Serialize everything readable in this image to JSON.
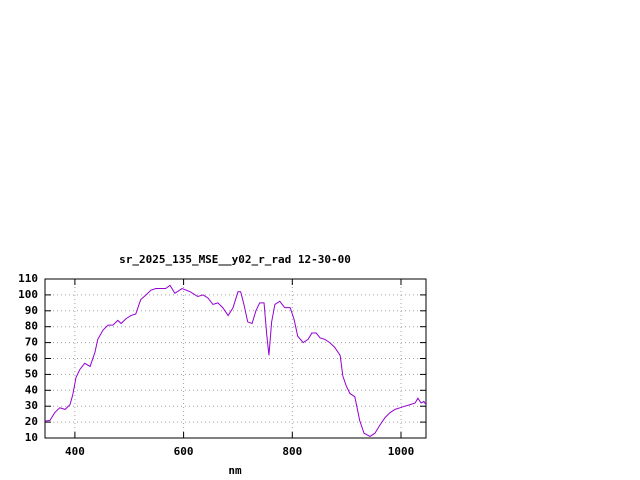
{
  "chart_data": {
    "type": "line",
    "title": "sr_2025_135_MSE__y02_r_rad 12-30-00",
    "x_label": "nm",
    "x": [
      345,
      354,
      363,
      372,
      382,
      391,
      396,
      402,
      409,
      418,
      428,
      437,
      442,
      452,
      461,
      470,
      479,
      485,
      494,
      503,
      512,
      521,
      531,
      540,
      549,
      567,
      575,
      584,
      597,
      612,
      626,
      636,
      645,
      654,
      663,
      672,
      682,
      691,
      700,
      705,
      711,
      718,
      726,
      733,
      740,
      748,
      753,
      757,
      762,
      768,
      777,
      786,
      796,
      803,
      810,
      820,
      829,
      836,
      844,
      851,
      860,
      869,
      878,
      888,
      893,
      899,
      906,
      915,
      924,
      932,
      943,
      952,
      961,
      971,
      980,
      989,
      998,
      1007,
      1017,
      1026,
      1031,
      1037,
      1042,
      1046
    ],
    "series": [
      {
        "color": "#9400d3",
        "values": [
          20.7,
          21,
          26,
          29,
          28,
          31,
          37,
          48,
          53,
          57,
          55,
          64,
          72,
          78,
          81,
          81,
          84,
          82,
          85,
          87,
          88,
          97,
          100,
          103,
          104,
          104,
          106,
          101,
          104,
          102,
          99,
          100,
          98,
          94,
          95,
          92,
          87,
          92,
          102,
          102,
          94,
          83,
          82,
          90,
          95,
          95,
          75,
          62,
          83,
          94,
          96,
          92,
          92,
          85,
          74,
          70,
          72,
          76,
          76,
          73,
          72,
          70,
          67,
          62,
          49,
          43,
          38,
          36,
          21,
          13,
          11,
          13,
          18,
          23,
          26,
          28,
          29,
          30,
          31,
          32,
          35,
          32,
          33,
          31
        ]
      }
    ],
    "xlim": [
      345,
      1046
    ],
    "ylim": [
      10,
      110
    ],
    "xticks": [
      400,
      600,
      800,
      1000
    ],
    "yticks": [
      10,
      20,
      30,
      40,
      50,
      60,
      70,
      80,
      90,
      100,
      110
    ],
    "grid": true
  }
}
